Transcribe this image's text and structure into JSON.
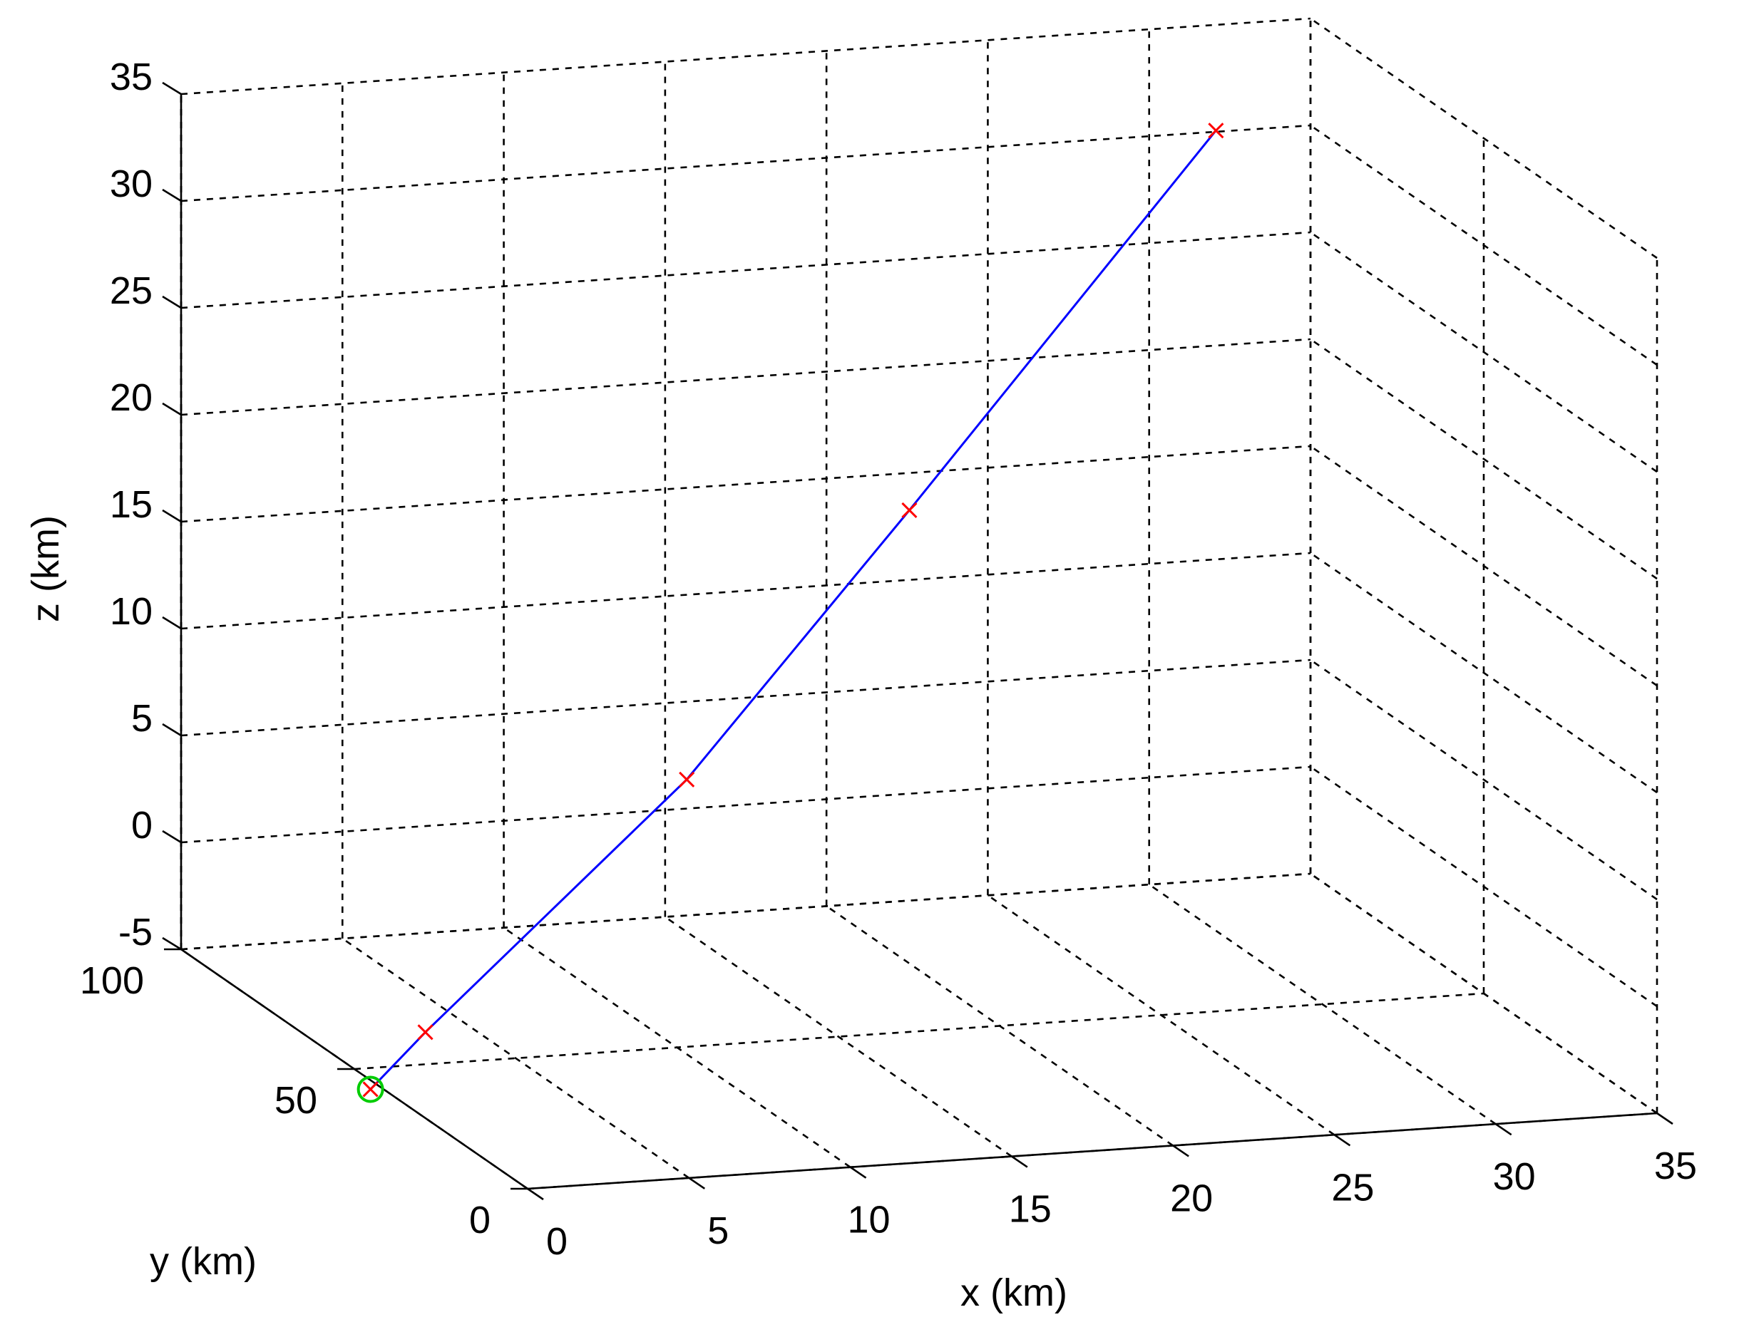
{
  "chart_data": {
    "type": "line3d",
    "xlabel": "x (km)",
    "ylabel": "y (km)",
    "zlabel": "z (km)",
    "xlim": [
      0,
      35
    ],
    "ylim": [
      0,
      100
    ],
    "zlim": [
      -5,
      35
    ],
    "xticks": [
      "0",
      "5",
      "10",
      "15",
      "20",
      "25",
      "30",
      "35"
    ],
    "yticks": [
      "0",
      "50",
      "100"
    ],
    "zticks": [
      "-5",
      "0",
      "5",
      "10",
      "15",
      "20",
      "25",
      "30",
      "35"
    ],
    "grid": true,
    "box": true,
    "series": [
      {
        "color": "#0000ff",
        "marker_color": "#ff0000",
        "marker": "x",
        "points": [
          {
            "x": 0.5,
            "y": 50,
            "z": -6
          },
          {
            "x": 2.2,
            "y": 50,
            "z": -3.5
          },
          {
            "x": 10.3,
            "y": 50,
            "z": 7.5
          },
          {
            "x": 17.2,
            "y": 50,
            "z": 19.4
          },
          {
            "x": 26.7,
            "y": 50,
            "z": 36.2
          }
        ]
      }
    ],
    "start_marker": {
      "x": 0.5,
      "y": 50,
      "z": -6,
      "color": "#00cc00",
      "marker": "o"
    }
  }
}
